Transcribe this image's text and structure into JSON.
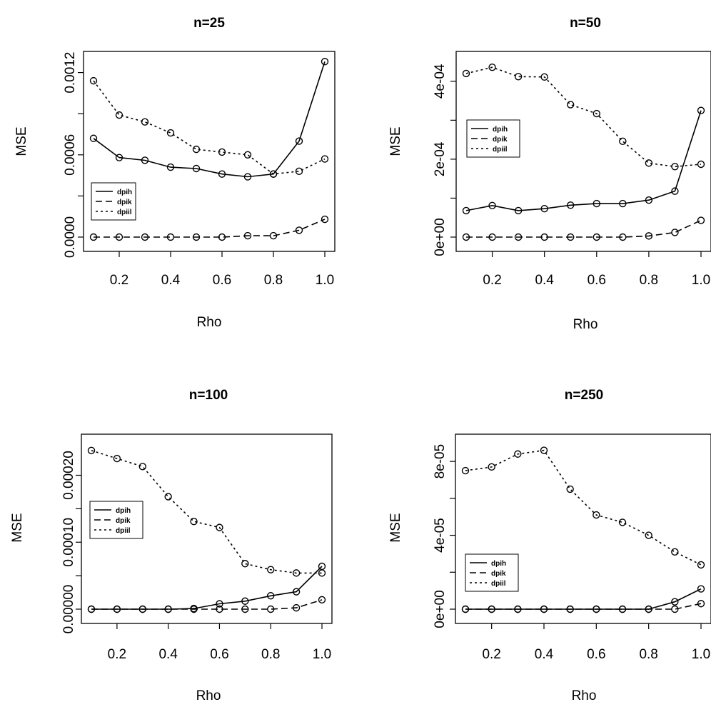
{
  "chart_data": [
    {
      "type": "line",
      "title": "n=25",
      "xlabel": "Rho",
      "ylabel": "MSE",
      "x": [
        0.1,
        0.2,
        0.3,
        0.4,
        0.5,
        0.6,
        0.7,
        0.8,
        0.9,
        1.0
      ],
      "xlim": [
        0.1,
        1.0
      ],
      "ylim": [
        0,
        0.00125
      ],
      "xticks": [
        "0.2",
        "0.4",
        "0.6",
        "0.8",
        "1.0"
      ],
      "xtick_values": [
        0.2,
        0.4,
        0.6,
        0.8,
        1.0
      ],
      "yticks": [
        "0.0000",
        "0.0006",
        "0.0012"
      ],
      "ytick_values": [
        0,
        0.0006,
        0.0012
      ],
      "legend_position": "bottom-left",
      "series": [
        {
          "name": "dpih",
          "style": "solid",
          "values": [
            0.00072,
            0.00058,
            0.00056,
            0.00051,
            0.0005,
            0.00046,
            0.00044,
            0.00046,
            0.0007,
            0.00128
          ]
        },
        {
          "name": "dpik",
          "style": "dashed",
          "values": [
            0.0,
            0.0,
            0.0,
            0.0,
            0.0,
            0.0,
            1e-05,
            1e-05,
            5e-05,
            0.00013
          ]
        },
        {
          "name": "dpiil",
          "style": "dotted",
          "values": [
            0.00114,
            0.00089,
            0.00084,
            0.00076,
            0.00064,
            0.00062,
            0.0006,
            0.00046,
            0.00048,
            0.00057
          ]
        }
      ]
    },
    {
      "type": "line",
      "title": "n=50",
      "xlabel": "Rho",
      "ylabel": "MSE",
      "x": [
        0.1,
        0.2,
        0.3,
        0.4,
        0.5,
        0.6,
        0.7,
        0.8,
        0.9,
        1.0
      ],
      "xlim": [
        0.1,
        1.0
      ],
      "ylim": [
        0,
        0.00044
      ],
      "xticks": [
        "0.2",
        "0.4",
        "0.6",
        "0.8",
        "1.0"
      ],
      "xtick_values": [
        0.2,
        0.4,
        0.6,
        0.8,
        1.0
      ],
      "yticks": [
        "0e+00",
        "2e-04",
        "4e-04"
      ],
      "ytick_values": [
        0,
        0.0002,
        0.0004
      ],
      "legend_position": "left",
      "series": [
        {
          "name": "dpih",
          "style": "solid",
          "values": [
            6.8e-05,
            8.1e-05,
            6.8e-05,
            7.3e-05,
            8.2e-05,
            8.6e-05,
            8.6e-05,
            9.5e-05,
            0.000118,
            0.000325
          ]
        },
        {
          "name": "dpik",
          "style": "dashed",
          "values": [
            0.0,
            0.0,
            0.0,
            0.0,
            0.0,
            0.0,
            0.0,
            3e-06,
            1.2e-05,
            4.3e-05
          ]
        },
        {
          "name": "dpiil",
          "style": "dotted",
          "values": [
            0.00042,
            0.000436,
            0.000412,
            0.000411,
            0.00034,
            0.000317,
            0.000246,
            0.00019,
            0.000181,
            0.000187
          ]
        }
      ]
    },
    {
      "type": "line",
      "title": "n=100",
      "xlabel": "Rho",
      "ylabel": "MSE",
      "x": [
        0.1,
        0.2,
        0.3,
        0.4,
        0.5,
        0.6,
        0.7,
        0.8,
        0.9,
        1.0
      ],
      "xlim": [
        0.1,
        1.0
      ],
      "ylim": [
        0,
        0.00024
      ],
      "xticks": [
        "0.2",
        "0.4",
        "0.6",
        "0.8",
        "1.0"
      ],
      "xtick_values": [
        0.2,
        0.4,
        0.6,
        0.8,
        1.0
      ],
      "yticks": [
        "0.00000",
        "0.00010",
        "0.00020"
      ],
      "ytick_values": [
        0,
        0.0001,
        0.0002
      ],
      "legend_position": "left",
      "series": [
        {
          "name": "dpih",
          "style": "solid",
          "values": [
            0.0,
            0.0,
            0.0,
            0.0,
            1e-06,
            8e-06,
            1.2e-05,
            2e-05,
            2.6e-05,
            6.4e-05
          ]
        },
        {
          "name": "dpik",
          "style": "dashed",
          "values": [
            0.0,
            0.0,
            0.0,
            0.0,
            0.0,
            0.0,
            0.0,
            0.0,
            2e-06,
            1.4e-05
          ]
        },
        {
          "name": "dpiil",
          "style": "dotted",
          "values": [
            0.000237,
            0.000225,
            0.000213,
            0.000168,
            0.000131,
            0.000122,
            6.8e-05,
            5.9e-05,
            5.4e-05,
            5.4e-05
          ]
        }
      ]
    },
    {
      "type": "line",
      "title": "n=250",
      "xlabel": "Rho",
      "ylabel": "MSE",
      "x": [
        0.1,
        0.2,
        0.3,
        0.4,
        0.5,
        0.6,
        0.7,
        0.8,
        0.9,
        1.0
      ],
      "xlim": [
        0.1,
        1.0
      ],
      "ylim": [
        0,
        8.7e-05
      ],
      "xticks": [
        "0.2",
        "0.4",
        "0.6",
        "0.8",
        "1.0"
      ],
      "xtick_values": [
        0.2,
        0.4,
        0.6,
        0.8,
        1.0
      ],
      "yticks": [
        "0e+00",
        "4e-05",
        "8e-05"
      ],
      "ytick_values": [
        0,
        4e-05,
        8e-05
      ],
      "legend_position": "bottom-left",
      "series": [
        {
          "name": "dpih",
          "style": "solid",
          "values": [
            0.0,
            0.0,
            0.0,
            0.0,
            0.0,
            0.0,
            0.0,
            0.0,
            4e-06,
            1.1e-05
          ]
        },
        {
          "name": "dpik",
          "style": "dashed",
          "values": [
            0.0,
            0.0,
            0.0,
            0.0,
            0.0,
            0.0,
            0.0,
            0.0,
            0.0,
            3e-06
          ]
        },
        {
          "name": "dpiil",
          "style": "dotted",
          "values": [
            7.5e-05,
            7.7e-05,
            8.4e-05,
            8.6e-05,
            6.5e-05,
            5.1e-05,
            4.7e-05,
            4e-05,
            3.1e-05,
            2.4e-05
          ]
        }
      ]
    }
  ]
}
